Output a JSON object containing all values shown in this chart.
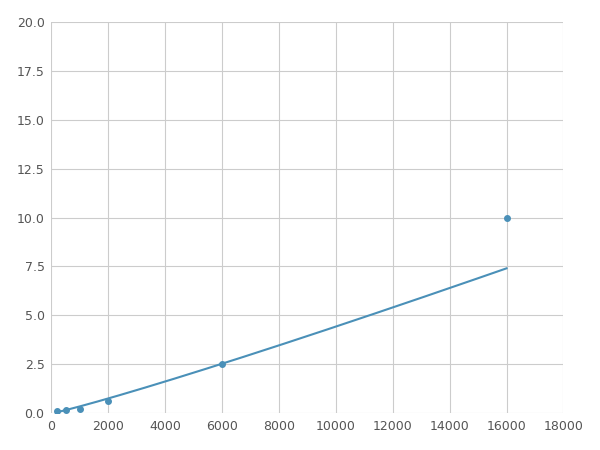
{
  "x_data": [
    200,
    500,
    1000,
    2000,
    6000,
    16000
  ],
  "y_data": [
    0.1,
    0.15,
    0.22,
    0.65,
    2.5,
    10.0
  ],
  "line_color": "#4a90b8",
  "marker_color": "#4a90b8",
  "marker_size": 4,
  "linewidth": 1.5,
  "xlim": [
    0,
    18000
  ],
  "ylim": [
    0,
    20
  ],
  "xticks": [
    0,
    2000,
    4000,
    6000,
    8000,
    10000,
    12000,
    14000,
    16000,
    18000
  ],
  "yticks": [
    0.0,
    2.5,
    5.0,
    7.5,
    10.0,
    12.5,
    15.0,
    17.5,
    20.0
  ],
  "grid_color": "#cccccc",
  "background_color": "#ffffff",
  "fig_width": 6.0,
  "fig_height": 4.5,
  "dpi": 100
}
